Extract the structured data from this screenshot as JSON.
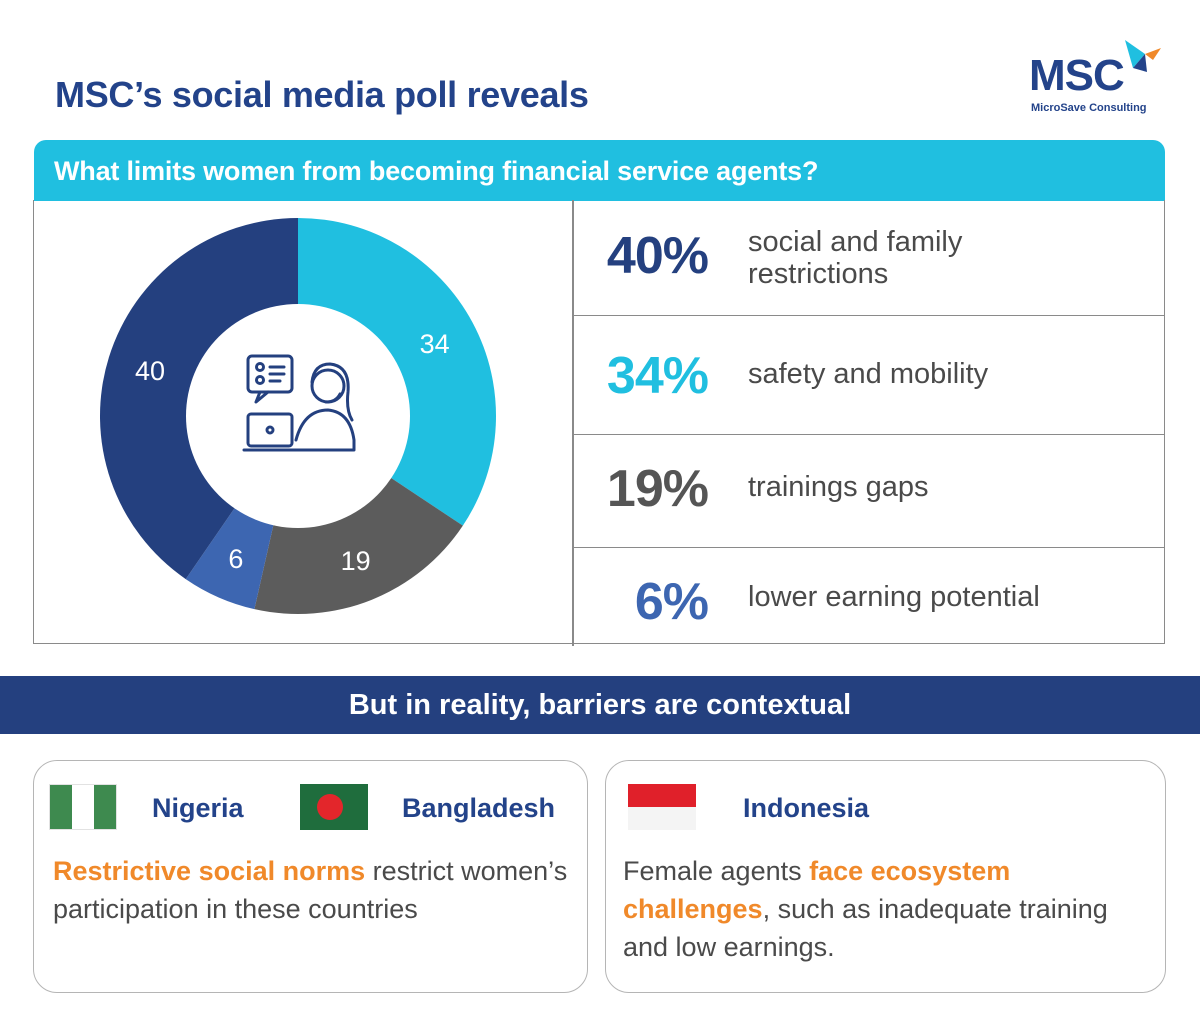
{
  "header": {
    "title": "MSC’s social media poll reveals",
    "logo_text": "MSC",
    "logo_sub": "MicroSave Consulting"
  },
  "question": "What limits women from becoming financial service agents?",
  "chart_data": {
    "type": "pie",
    "donut": true,
    "categories": [
      "social and family restrictions",
      "safety and mobility",
      "trainings gaps",
      "lower earning potential"
    ],
    "values": [
      40,
      34,
      19,
      6
    ],
    "slice_order_clockwise_from_top": [
      34,
      19,
      6,
      40
    ],
    "colors": [
      "#24407f",
      "#20bfe0",
      "#5c5c5c",
      "#3d66b1"
    ],
    "center_icon": "support-agent-laptop-icon"
  },
  "stats": [
    {
      "pct": "40%",
      "label": "social and family\nrestrictions",
      "color": "#24407f"
    },
    {
      "pct": "34%",
      "label": "safety and mobility",
      "color": "#20bfe0"
    },
    {
      "pct": "19%",
      "label": "trainings gaps",
      "color": "#555555"
    },
    {
      "pct": "6%",
      "label": "lower earning potential",
      "color": "#3d66b1"
    }
  ],
  "reality": {
    "title": "But in reality, barriers are contextual"
  },
  "cards": {
    "left": {
      "country1": "Nigeria",
      "country2": "Bangladesh",
      "highlight": "Restrictive social norms",
      "text_rest": " restrict women’s participation in these countries"
    },
    "right": {
      "country": "Indonesia",
      "text_pre": "Female agents ",
      "highlight": "face ecosystem challenges",
      "text_rest": ", such as inadequate training and low earnings."
    }
  },
  "colors": {
    "navy": "#23438a",
    "cyan": "#20bfe0",
    "orange": "#f0892a"
  }
}
